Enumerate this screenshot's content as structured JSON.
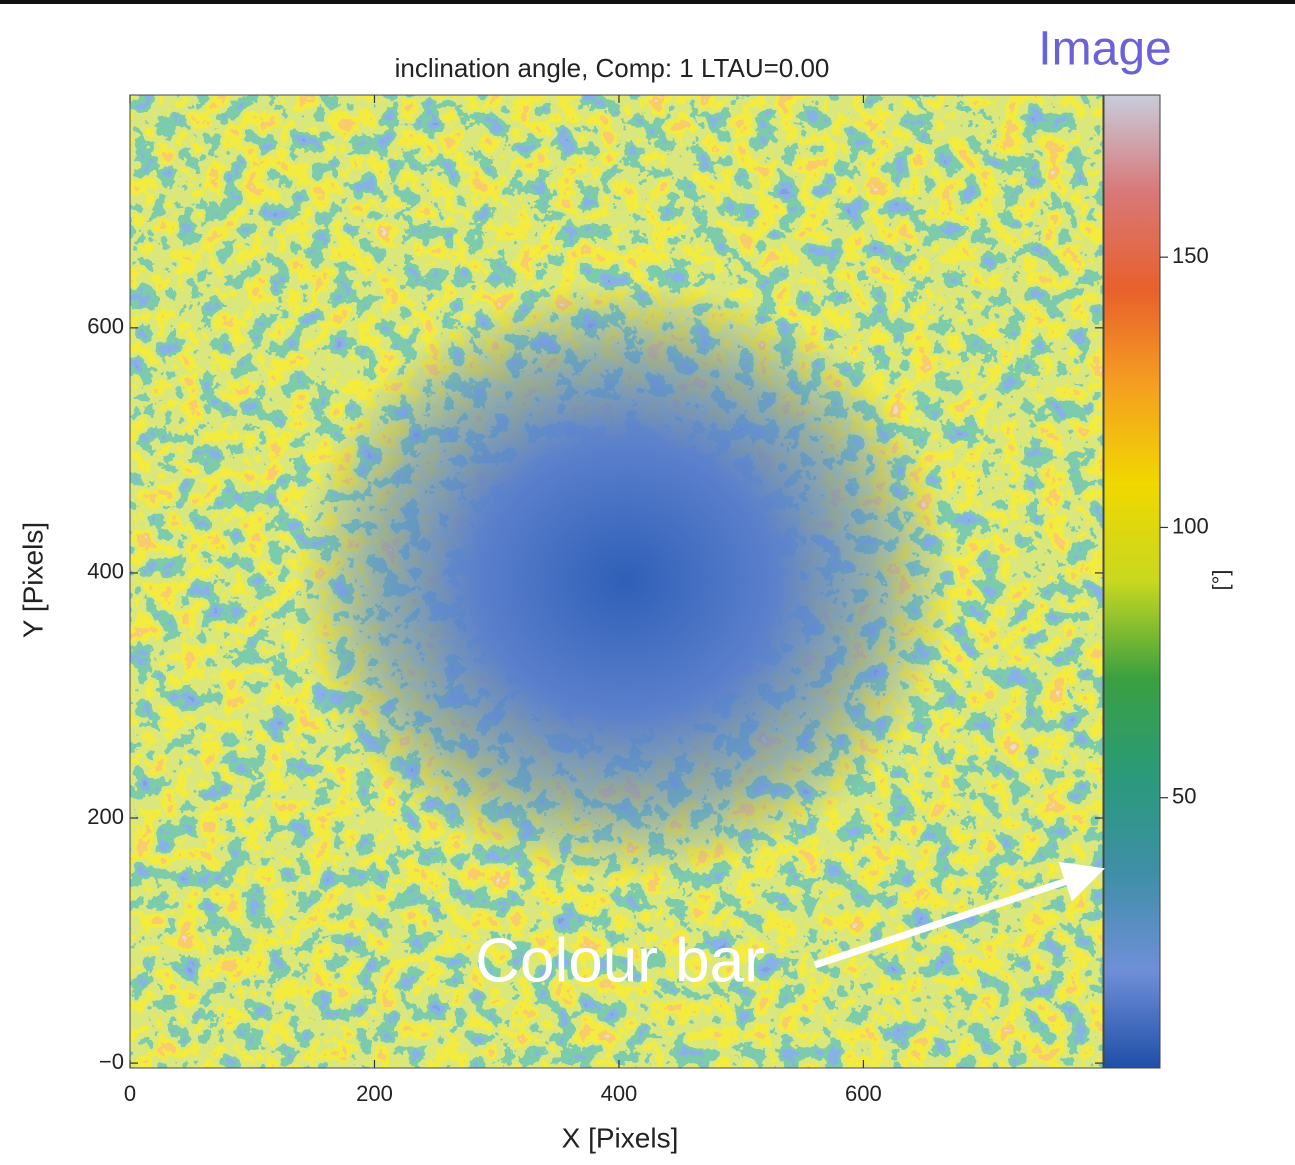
{
  "chart_data": {
    "type": "image",
    "title": "inclination angle, Comp: 1 LTAU=0.00",
    "x_label": "X [Pixels]",
    "y_label": "Y [Pixels]",
    "xlim": [
      0,
      796
    ],
    "ylim": [
      -4,
      790
    ],
    "xticks": [
      0,
      200,
      400,
      600
    ],
    "yticks": [
      {
        "value": 0,
        "label": "−0"
      },
      200,
      400,
      600
    ],
    "colorbar": {
      "label": "[°]",
      "clim": [
        0,
        180
      ],
      "ticks": [
        50,
        100,
        150
      ],
      "colors": [
        "#1f4fa8",
        "#6f8fd8",
        "#3f8fa8",
        "#2a9a7a",
        "#3aa040",
        "#c8d820",
        "#f0d800",
        "#f5a020",
        "#e8602c",
        "#d87878",
        "#c8ccdc"
      ]
    }
  },
  "annotations": [
    "Image",
    "Colour bar"
  ]
}
